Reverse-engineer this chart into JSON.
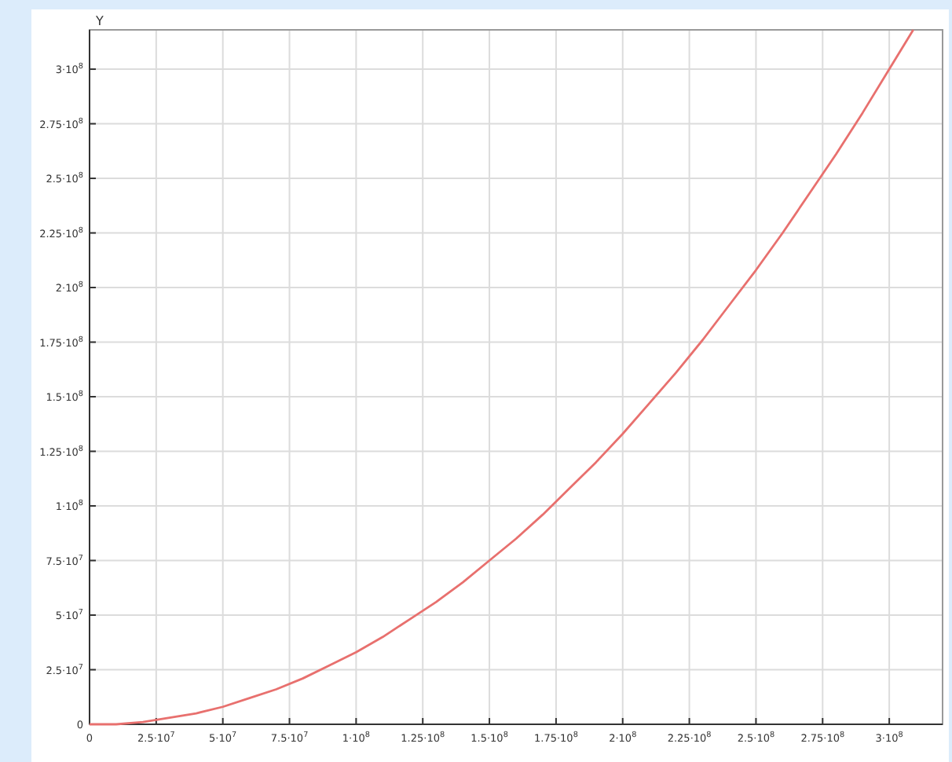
{
  "chart_data": {
    "type": "line",
    "ylabel": "Y",
    "x": [
      0,
      10000000,
      20000000,
      30000000,
      40000000,
      50000000,
      60000000,
      70000000,
      80000000,
      90000000,
      100000000,
      110000000,
      120000000,
      130000000,
      140000000,
      150000000,
      160000000,
      170000000,
      180000000,
      190000000,
      200000000,
      210000000,
      220000000,
      230000000,
      240000000,
      250000000,
      260000000,
      270000000,
      280000000,
      290000000,
      300000000,
      309000000
    ],
    "series": [
      {
        "color": "#e8706e",
        "values": [
          0,
          0,
          1000000,
          3000000,
          5000000,
          8000000,
          12000000,
          16000000,
          21000000,
          27000000,
          33000000,
          40000000,
          48000000,
          56000000,
          65000000,
          75000000,
          85000000,
          96000000,
          108000000,
          120000000,
          133000000,
          147000000,
          161000000,
          176000000,
          192000000,
          208000000,
          225000000,
          243000000,
          261000000,
          280000000,
          300000000,
          318000000
        ]
      }
    ],
    "xlim": [
      0,
      320000000
    ],
    "ylim": [
      0,
      318000000
    ],
    "xticks": [
      0,
      {
        "value": 25000000,
        "label": "2.5·10$^{7}$"
      },
      {
        "value": 50000000,
        "label": "5·10$^{7}$"
      },
      {
        "value": 75000000,
        "label": "7.5·10$^{7}$"
      },
      {
        "value": 100000000,
        "label": "1·10$^{8}$"
      },
      {
        "value": 125000000,
        "label": "1.25·10$^{8}$"
      },
      {
        "value": 150000000,
        "label": "1.5·10$^{8}$"
      },
      {
        "value": 175000000,
        "label": "1.75·10$^{8}$"
      },
      {
        "value": 200000000,
        "label": "2·10$^{8}$"
      },
      {
        "value": 225000000,
        "label": "2.25·10$^{8}$"
      },
      {
        "value": 250000000,
        "label": "2.5·10$^{8}$"
      },
      {
        "value": 275000000,
        "label": "2.75·10$^{8}$"
      },
      {
        "value": 300000000,
        "label": "3·10$^{8}$"
      }
    ],
    "yticks": [
      0,
      {
        "value": 25000000,
        "label": "2.5·10$^{7}$"
      },
      {
        "value": 50000000,
        "label": "5·10$^{7}$"
      },
      {
        "value": 75000000,
        "label": "7.5·10$^{7}$"
      },
      {
        "value": 100000000,
        "label": "1·10$^{8}$"
      },
      {
        "value": 125000000,
        "label": "1.25·10$^{8}$"
      },
      {
        "value": 150000000,
        "label": "1.5·10$^{8}$"
      },
      {
        "value": 175000000,
        "label": "1.75·10$^{8}$"
      },
      {
        "value": 200000000,
        "label": "2·10$^{8}$"
      },
      {
        "value": 225000000,
        "label": "2.25·10$^{8}$"
      },
      {
        "value": 250000000,
        "label": "2.5·10$^{8}$"
      },
      {
        "value": 275000000,
        "label": "2.75·10$^{8}$"
      },
      {
        "value": 300000000,
        "label": "3·10$^{8}$"
      }
    ],
    "grid": true,
    "line_style": "solid",
    "marker": "none"
  }
}
